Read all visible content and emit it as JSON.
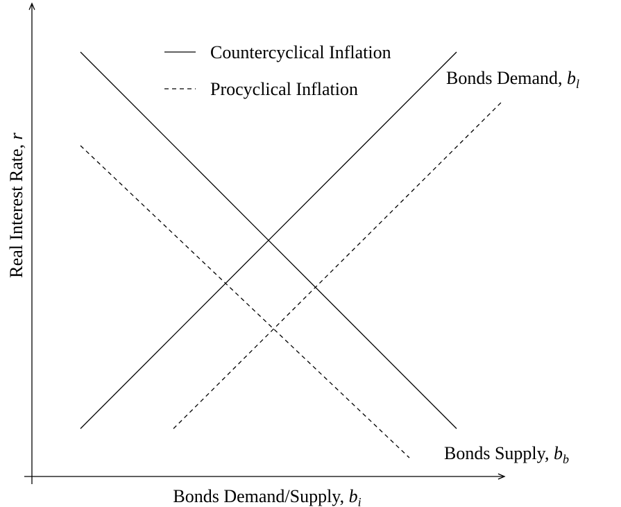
{
  "axes": {
    "x_label": {
      "text": "Bonds Demand/Supply, ",
      "symbol": "b",
      "subscript": "i"
    },
    "y_label": {
      "text": "Real Interest Rate, ",
      "symbol": "r"
    }
  },
  "legend": [
    {
      "label": "Countercyclical Inflation"
    },
    {
      "label": "Procyclical Inflation"
    }
  ],
  "curve_labels": {
    "demand": {
      "text": "Bonds Demand, ",
      "symbol": "b",
      "subscript": "l"
    },
    "supply": {
      "text": "Bonds Supply, ",
      "symbol": "b",
      "subscript": "b"
    }
  }
}
